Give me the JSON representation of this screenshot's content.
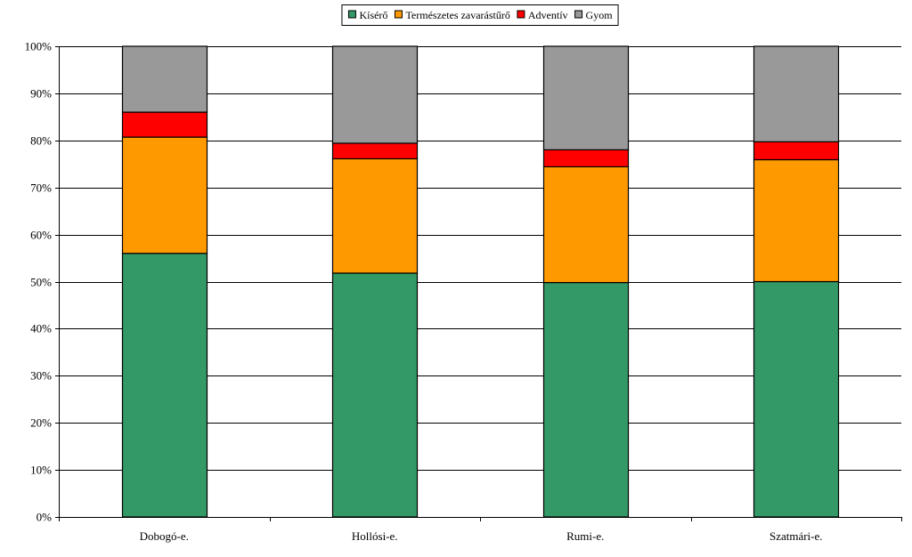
{
  "chart_data": {
    "type": "bar",
    "stacked": true,
    "percent": true,
    "categories": [
      "Dobogó-e.",
      "Hollósi-e.",
      "Rumi-e.",
      "Szatmári-e."
    ],
    "series": [
      {
        "name": "Kísérő",
        "color": "#339966",
        "values": [
          56.0,
          51.8,
          49.8,
          50.0
        ]
      },
      {
        "name": "Természetes zavarástűrő",
        "color": "#FF9900",
        "values": [
          24.7,
          24.3,
          24.6,
          25.9
        ]
      },
      {
        "name": "Adventív",
        "color": "#FF0000",
        "values": [
          5.3,
          3.3,
          3.6,
          3.8
        ]
      },
      {
        "name": "Gyom",
        "color": "#999999",
        "values": [
          14.0,
          20.6,
          22.0,
          20.3
        ]
      }
    ],
    "yticks": [
      "0%",
      "10%",
      "20%",
      "30%",
      "40%",
      "50%",
      "60%",
      "70%",
      "80%",
      "90%",
      "100%"
    ],
    "ylim": [
      0,
      100
    ],
    "grid": true,
    "legend": "top-center"
  }
}
